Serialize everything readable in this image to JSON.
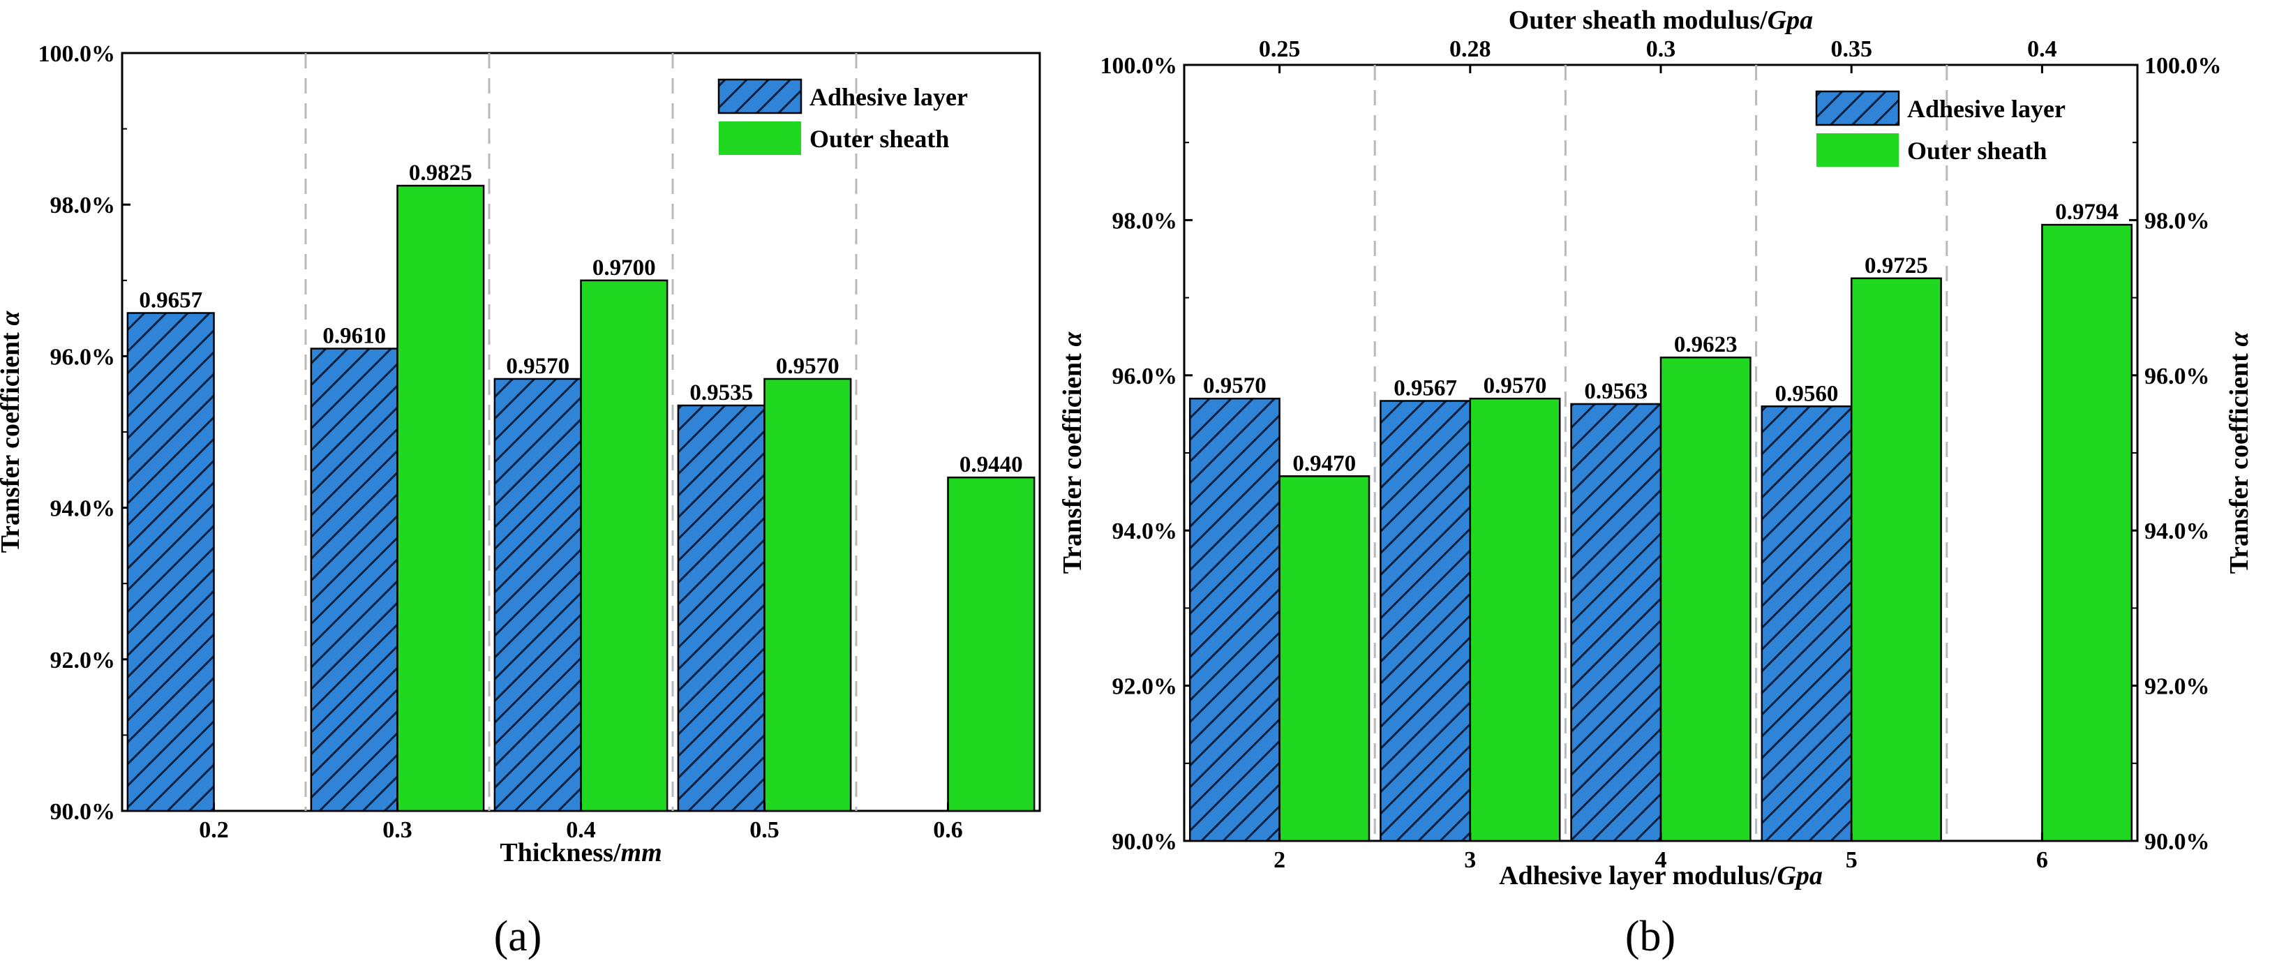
{
  "colors": {
    "adhesive": "#2f84d8",
    "sheath": "#20d820",
    "hatch": "#0c2040",
    "grid": "#b9b9b9"
  },
  "chart_data": [
    {
      "id": "a",
      "type": "bar",
      "caption": "(a)",
      "categories": [
        "0.2",
        "0.3",
        "0.4",
        "0.5",
        "0.6"
      ],
      "series": [
        {
          "name": "Adhesive layer",
          "values": [
            0.9657,
            0.961,
            0.957,
            0.9535,
            null
          ],
          "labels": [
            "0.9657",
            "0.9610",
            "0.9570",
            "0.9535",
            ""
          ]
        },
        {
          "name": "Outer sheath",
          "values": [
            null,
            0.9825,
            0.97,
            0.957,
            0.944
          ],
          "labels": [
            "",
            "0.9825",
            "0.9700",
            "0.9570",
            "0.9440"
          ]
        }
      ],
      "xlabel_main": "Thickness/",
      "xlabel_unit": "mm",
      "ylabel_main": "Transfer coefficient ",
      "ylabel_sym": "α",
      "ylim": [
        0.9,
        1.0
      ],
      "yticks": [
        0.9,
        0.92,
        0.94,
        0.96,
        0.98,
        1.0
      ],
      "ytick_labels": [
        "90.0%",
        "92.0%",
        "94.0%",
        "96.0%",
        "98.0%",
        "100.0%"
      ],
      "grid": "vertical dashed between categories",
      "legend_position": "top-right"
    },
    {
      "id": "b",
      "type": "bar",
      "caption": "(b)",
      "categories": [
        "2",
        "3",
        "4",
        "5",
        "6"
      ],
      "top_categories": [
        "0.25",
        "0.28",
        "0.3",
        "0.35",
        "0.4"
      ],
      "series": [
        {
          "name": "Adhesive layer",
          "values": [
            0.957,
            0.9567,
            0.9563,
            0.956,
            null
          ],
          "labels": [
            "0.9570",
            "0.9567",
            "0.9563",
            "0.9560",
            ""
          ]
        },
        {
          "name": "Outer sheath",
          "values": [
            0.947,
            0.957,
            0.9623,
            0.9725,
            0.9794
          ],
          "labels": [
            "0.9470",
            "0.9570",
            "0.9623",
            "0.9725",
            "0.9794"
          ]
        }
      ],
      "xlabel_main": "Adhesive layer modulus/",
      "xlabel_unit": "Gpa",
      "top_xlabel_main": "Outer sheath modulus/",
      "top_xlabel_unit": "Gpa",
      "ylabel_main": "Transfer coefficient ",
      "ylabel_sym": "α",
      "right_ylabel_main": "Transfer coefficient ",
      "right_ylabel_sym": "α",
      "ylim": [
        0.9,
        1.0
      ],
      "yticks": [
        0.9,
        0.92,
        0.94,
        0.96,
        0.98,
        1.0
      ],
      "ytick_labels": [
        "90.0%",
        "92.0%",
        "94.0%",
        "96.0%",
        "98.0%",
        "100.0%"
      ],
      "grid": "vertical dashed between categories",
      "legend_position": "top-right"
    }
  ]
}
